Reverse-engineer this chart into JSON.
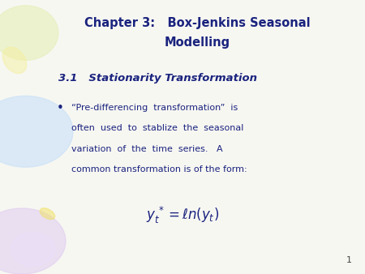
{
  "bg_color": "#f7f7f2",
  "title_line1": "Chapter 3:   Box-Jenkins Seasonal",
  "title_line2": "Modelling",
  "title_color": "#1a237e",
  "section_title": "3.1   Stationarity Transformation",
  "section_color": "#1a237e",
  "body_text_line1": "“Pre-differencing  transformation”  is",
  "body_text_line2": "often  used  to  stablize  the  seasonal",
  "body_text_line3": "variation  of  the  time  series.   A",
  "body_text_line4": "common transformation is of the form:",
  "body_color": "#1a237e",
  "formula_color": "#1a237e",
  "page_number": "1"
}
